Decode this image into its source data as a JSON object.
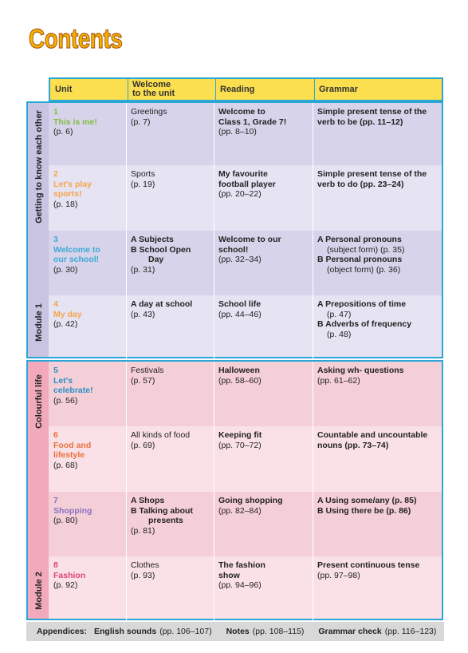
{
  "title": "Contents",
  "columns": {
    "unit": "Unit",
    "welcome": "Welcome\nto the unit",
    "reading": "Reading",
    "grammar": "Grammar"
  },
  "sections": [
    {
      "label": "Getting to know each other"
    },
    {
      "label": "Module 1"
    },
    {
      "label": "Colourful life"
    },
    {
      "label": "Module 2"
    }
  ],
  "colors": {
    "module1_band": "#d7d3ea",
    "module1_band_light": "#e6e3f3",
    "module2_band": "#f5cfd8",
    "module2_band_light": "#fae1e7",
    "module1_side": "#c8c4e2",
    "module2_side": "#f1a9bb",
    "border": "#2aa7d6",
    "header": "#fbdf4f"
  },
  "units": [
    {
      "num": "1",
      "name": "This is me!",
      "page": "(p. 6)",
      "color": "#7fbf3f",
      "welcome": [
        "Greetings",
        "(p. 7)"
      ],
      "reading": [
        "Welcome to",
        "Class 1, Grade 7!",
        "(pp. 8–10)"
      ],
      "grammar": [
        "Simple present tense of the",
        "verb to be (pp. 11–12)"
      ]
    },
    {
      "num": "2",
      "name": "Let's play sports!",
      "page": "(p. 18)",
      "color": "#f5a54a",
      "welcome": [
        "Sports",
        "(p. 19)"
      ],
      "reading": [
        "My favourite",
        "football player",
        "(pp. 20–22)"
      ],
      "grammar": [
        "Simple present tense of the",
        "verb to do (pp. 23–24)"
      ]
    },
    {
      "num": "3",
      "name": "Welcome to our school!",
      "page": "(p. 30)",
      "color": "#3aa9d6",
      "welcome": [
        "A  Subjects",
        "B  School Open",
        "Day",
        "(p. 31)"
      ],
      "reading": [
        "Welcome to our",
        "school!",
        "(pp. 32–34)"
      ],
      "grammar": [
        "A  Personal pronouns",
        "(subject form) (p. 35)",
        "B  Personal pronouns",
        "(object form) (p. 36)"
      ]
    },
    {
      "num": "4",
      "name": "My day",
      "page": "(p. 42)",
      "color": "#f5a54a",
      "welcome": [
        "A day at school",
        "(p. 43)"
      ],
      "reading": [
        "School life",
        "(pp. 44–46)"
      ],
      "grammar": [
        "A  Prepositions of time",
        "(p. 47)",
        "B  Adverbs of frequency",
        "(p. 48)"
      ]
    },
    {
      "num": "5",
      "name": "Let's celebrate!",
      "page": "(p. 56)",
      "color": "#2a8fc4",
      "welcome": [
        "Festivals",
        "(p. 57)"
      ],
      "reading": [
        "Halloween",
        "(pp. 58–60)"
      ],
      "grammar": [
        "Asking wh- questions",
        "(pp. 61–62)"
      ]
    },
    {
      "num": "6",
      "name": "Food and lifestyle",
      "page": "(p. 68)",
      "color": "#e8703a",
      "welcome": [
        "All kinds of food",
        "(p. 69)"
      ],
      "reading": [
        "Keeping fit",
        "(pp. 70–72)"
      ],
      "grammar": [
        "Countable and uncountable",
        "nouns (pp. 73–74)"
      ]
    },
    {
      "num": "7",
      "name": "Shopping",
      "page": "(p. 80)",
      "color": "#8a72c0",
      "welcome": [
        "A  Shops",
        "B  Talking about",
        "presents",
        "(p. 81)"
      ],
      "reading": [
        "Going shopping",
        "(pp. 82–84)"
      ],
      "grammar": [
        "A  Using some/any (p. 85)",
        "B  Using there be (p. 86)"
      ]
    },
    {
      "num": "8",
      "name": "Fashion",
      "page": "(p. 92)",
      "color": "#e0457a",
      "welcome": [
        "Clothes",
        "(p. 93)"
      ],
      "reading": [
        "The fashion",
        "show",
        "(pp. 94–96)"
      ],
      "grammar": [
        "Present continuous tense",
        "(pp. 97–98)"
      ]
    }
  ],
  "footer": {
    "label": "Appendices:",
    "item1_bold": "English sounds",
    "item1_pages": "(pp. 106–107)",
    "item2_bold": "Notes",
    "item2_pages": "(pp. 108–115)",
    "item3_bold": "Grammar check",
    "item3_pages": "(pp. 116–123)"
  }
}
